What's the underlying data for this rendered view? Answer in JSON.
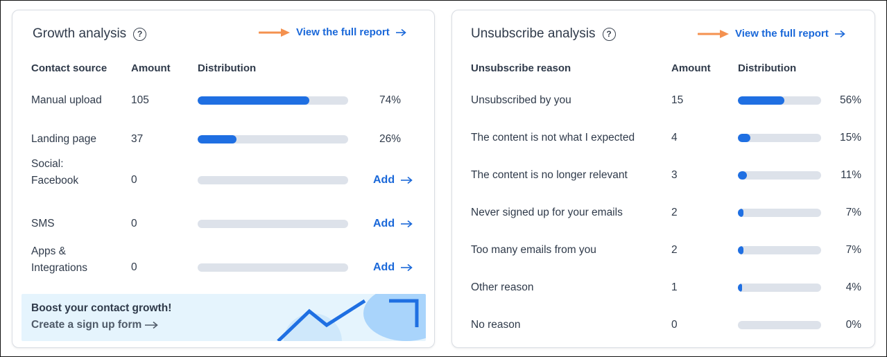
{
  "growth": {
    "title": "Growth analysis",
    "help_icon": "?",
    "report_link": "View the full report",
    "columns": {
      "source": "Contact source",
      "amount": "Amount",
      "distribution": "Distribution"
    },
    "rows": [
      {
        "label": "Manual upload",
        "amount": "105",
        "percent": "74%",
        "fill": 0.74,
        "action": ""
      },
      {
        "label": "Landing page",
        "amount": "37",
        "percent": "26%",
        "fill": 0.26,
        "action": ""
      },
      {
        "label": "Social:\nFacebook",
        "amount": "0",
        "percent": "",
        "fill": 0,
        "action": "Add"
      },
      {
        "label": "SMS",
        "amount": "0",
        "percent": "",
        "fill": 0,
        "action": "Add"
      },
      {
        "label": "Apps &\nIntegrations",
        "amount": "0",
        "percent": "",
        "fill": 0,
        "action": "Add"
      }
    ],
    "promo": {
      "title": "Boost your contact growth!",
      "link": "Create a sign up form"
    }
  },
  "unsub": {
    "title": "Unsubscribe analysis",
    "help_icon": "?",
    "report_link": "View the full report",
    "columns": {
      "reason": "Unsubscribe reason",
      "amount": "Amount",
      "distribution": "Distribution"
    },
    "rows": [
      {
        "label": "Unsubscribed by you",
        "amount": "15",
        "percent": "56%",
        "fill": 0.56
      },
      {
        "label": "The content is not what I expected",
        "amount": "4",
        "percent": "15%",
        "fill": 0.15
      },
      {
        "label": "The content is no longer relevant",
        "amount": "3",
        "percent": "11%",
        "fill": 0.11
      },
      {
        "label": "Never signed up for your emails",
        "amount": "2",
        "percent": "7%",
        "fill": 0.07
      },
      {
        "label": "Too many emails from you",
        "amount": "2",
        "percent": "7%",
        "fill": 0.07
      },
      {
        "label": "Other reason",
        "amount": "1",
        "percent": "4%",
        "fill": 0.04
      },
      {
        "label": "No reason",
        "amount": "0",
        "percent": "0%",
        "fill": 0
      }
    ]
  },
  "colors": {
    "accent": "#1a68d9",
    "bar_fill": "#1f6fe2",
    "bar_track": "#dde2ea",
    "annotation_arrow": "#f4914f",
    "promo_bg": "#e5f4fd"
  },
  "icons": {
    "help": "question-circle-icon",
    "link_arrow": "arrow-right-icon",
    "annotation": "orange-pointer-arrow-icon"
  }
}
